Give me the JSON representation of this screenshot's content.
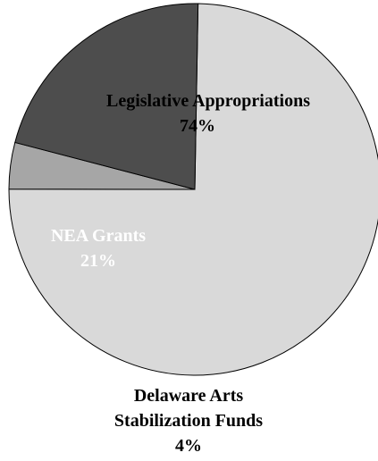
{
  "chart_data": {
    "type": "pie",
    "start_angle_deg": 1,
    "direction": "clockwise",
    "slices": [
      {
        "label": "Legislative Appropriations",
        "percent_label": "74%",
        "value": 74,
        "color": "#d9d9d9",
        "text_color": "#000000"
      },
      {
        "label": "Delaware Arts Stabilization Funds",
        "label_lines": [
          "Delaware Arts",
          "Stabilization Funds"
        ],
        "percent_label": "4%",
        "value": 4,
        "color": "#a6a6a6",
        "text_color": "#000000"
      },
      {
        "label": "NEA Grants",
        "percent_label": "21%",
        "value": 21,
        "color": "#4d4d4d",
        "text_color": "#ffffff"
      }
    ]
  }
}
